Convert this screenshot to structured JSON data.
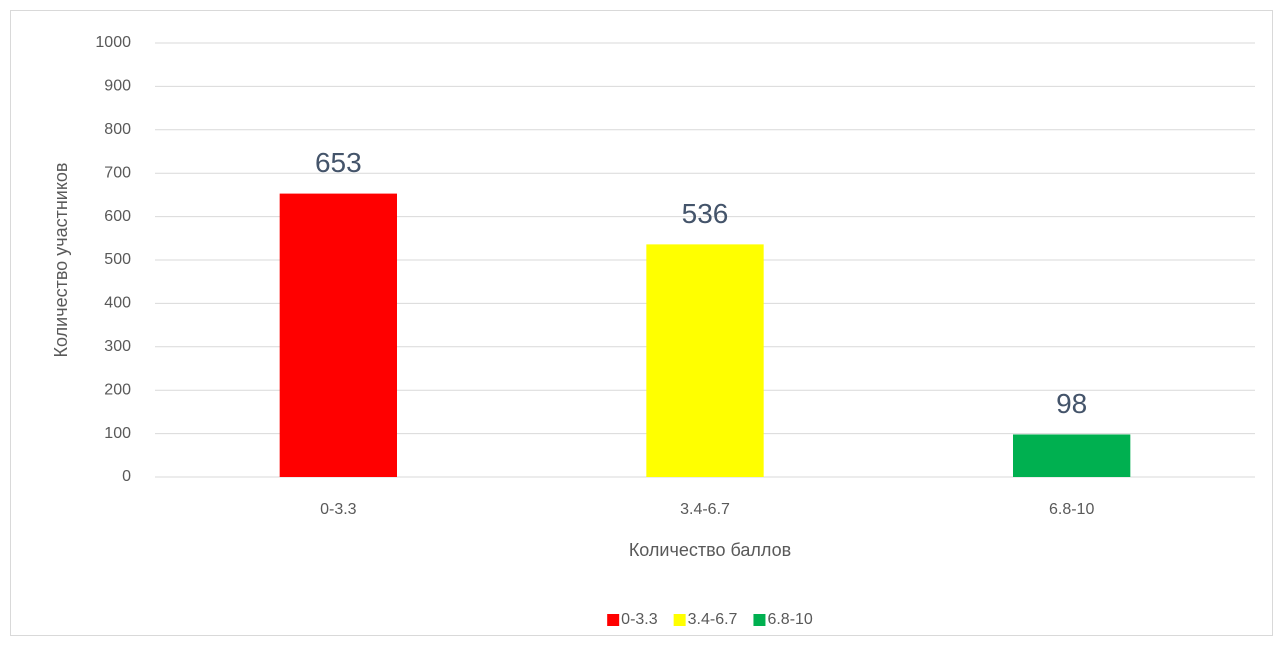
{
  "chart_data": {
    "type": "bar",
    "categories": [
      "0-3.3",
      "3.4-6.7",
      "6.8-10"
    ],
    "values": [
      653,
      536,
      98
    ],
    "colors": [
      "#ff0000",
      "#ffff00",
      "#00b050"
    ],
    "x_label": "Количество баллов",
    "y_label": "Количество участников",
    "ylim": [
      0,
      1000
    ],
    "yticks": [
      0,
      100,
      200,
      300,
      400,
      500,
      600,
      700,
      800,
      900,
      1000
    ],
    "grid": true,
    "legend": "bottom"
  }
}
